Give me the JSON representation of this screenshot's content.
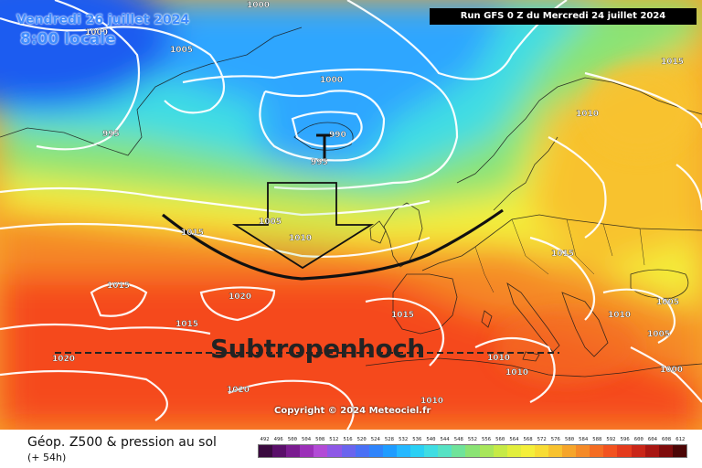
{
  "header": {
    "valid_date": "Vendredi 26 juillet 2024",
    "valid_time": "8:00 locale",
    "run_info": "Run GFS 0 Z du Mercredi 24 juillet 2024"
  },
  "map": {
    "annotation": "Subtropenhoch",
    "copyright": "Copyright © 2024 Meteociel.fr",
    "colors": {
      "deep_low": "#1b5cf0",
      "low": "#2ea6ff",
      "cyan": "#3fdde3",
      "green": "#6fd36a",
      "yellow": "#f4ef3a",
      "orange": "#f6a52a",
      "red": "#f54a1e",
      "isobar": "#ffffff",
      "arrow": "#111111"
    },
    "isobar_labels": [
      {
        "id": "iso-1000-top",
        "text": "1000"
      },
      {
        "id": "iso-1000-tl",
        "text": "1000"
      },
      {
        "id": "iso-1005-tl",
        "text": "1005"
      },
      {
        "id": "iso-995-w",
        "text": "995"
      },
      {
        "id": "iso-1000-c",
        "text": "1000"
      },
      {
        "id": "iso-990",
        "text": "990"
      },
      {
        "id": "iso-995-c",
        "text": "995"
      },
      {
        "id": "iso-1005-mid",
        "text": "1005"
      },
      {
        "id": "iso-1010-mid",
        "text": "1010"
      },
      {
        "id": "iso-1015-w",
        "text": "1015"
      },
      {
        "id": "iso-1015-sw",
        "text": "1015"
      },
      {
        "id": "iso-1020-mid",
        "text": "1020"
      },
      {
        "id": "iso-1015-s",
        "text": "1015"
      },
      {
        "id": "iso-1020-sw",
        "text": "1020"
      },
      {
        "id": "iso-1020-s",
        "text": "1020"
      },
      {
        "id": "iso-1015-ne",
        "text": "1015"
      },
      {
        "id": "iso-1010-ne",
        "text": "1010"
      },
      {
        "id": "iso-1015-e",
        "text": "1015"
      },
      {
        "id": "iso-1015-ib",
        "text": "1015"
      },
      {
        "id": "iso-1010-it",
        "text": "1010"
      },
      {
        "id": "iso-1005-ee",
        "text": "1005"
      },
      {
        "id": "iso-1005-se",
        "text": "1005"
      },
      {
        "id": "iso-1010-sa",
        "text": "1010"
      },
      {
        "id": "iso-1010-sb",
        "text": "1010"
      },
      {
        "id": "iso-1010-nafr",
        "text": "1010"
      },
      {
        "id": "iso-1000-far",
        "text": "1000"
      }
    ]
  },
  "footer": {
    "title": "Géop. Z500 & pression au sol",
    "subtitle": "(+ 54h)"
  },
  "legend": {
    "ticks": [
      "492",
      "496",
      "500",
      "504",
      "508",
      "512",
      "516",
      "520",
      "524",
      "528",
      "532",
      "536",
      "540",
      "544",
      "548",
      "552",
      "556",
      "560",
      "564",
      "568",
      "572",
      "576",
      "580",
      "584",
      "588",
      "592",
      "596",
      "600",
      "604",
      "608",
      "612"
    ],
    "colors": [
      "#3a0a3f",
      "#5a0f6a",
      "#7a1c90",
      "#9b30b8",
      "#b24bd6",
      "#8e58e6",
      "#6a64ee",
      "#4a70f5",
      "#2f84fb",
      "#1f9cff",
      "#25b8ff",
      "#2ad0f4",
      "#3fdde3",
      "#56e2c4",
      "#6fe39a",
      "#8ae374",
      "#a8e65a",
      "#c6ea46",
      "#e2ee3c",
      "#f4ef3a",
      "#f8dc34",
      "#f8c22f",
      "#f6a52a",
      "#f58a27",
      "#f46c22",
      "#f2521f",
      "#e43a1c",
      "#c92618",
      "#a81612",
      "#7f0c0c",
      "#4c0606"
    ]
  }
}
